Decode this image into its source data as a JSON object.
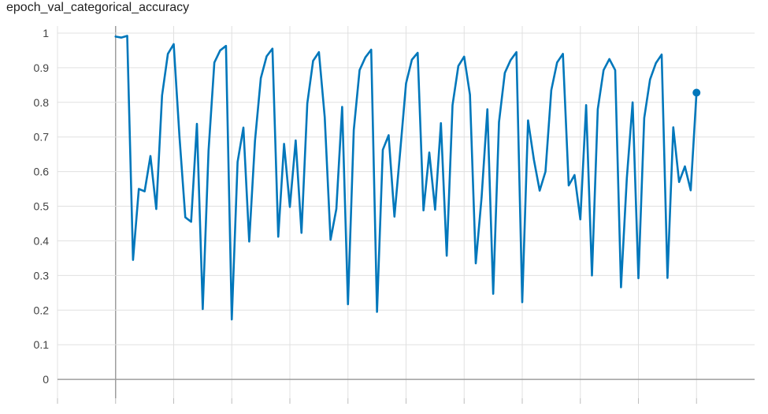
{
  "chart_data": {
    "type": "line",
    "title": "epoch_val_categorical_accuracy",
    "xlabel": "",
    "ylabel": "",
    "x_range": [
      -10,
      110
    ],
    "ylim": [
      -0.1,
      1.05
    ],
    "yticks": [
      0,
      0.1,
      0.2,
      0.3,
      0.4,
      0.5,
      0.6,
      0.7,
      0.8,
      0.9,
      1
    ],
    "ytick_labels": [
      "0",
      "0.1",
      "0.2",
      "0.3",
      "0.4",
      "0.5",
      "0.6",
      "0.7",
      "0.8",
      "0.9",
      "1"
    ],
    "xgrid": [
      -10,
      0,
      10,
      20,
      30,
      40,
      50,
      60,
      70,
      80,
      90,
      100
    ],
    "grid": true,
    "line_color": "#0077bb",
    "series": [
      {
        "name": "",
        "x": [
          0,
          1,
          2,
          3,
          4,
          5,
          6,
          7,
          8,
          9,
          10,
          11,
          12,
          13,
          14,
          15,
          16,
          17,
          18,
          19,
          20,
          21,
          22,
          23,
          24,
          25,
          26,
          27,
          28,
          29,
          30,
          31,
          32,
          33,
          34,
          35,
          36,
          37,
          38,
          39,
          40,
          41,
          42,
          43,
          44,
          45,
          46,
          47,
          48,
          49,
          50,
          51,
          52,
          53,
          54,
          55,
          56,
          57,
          58,
          59,
          60,
          61,
          62,
          63,
          64,
          65,
          66,
          67,
          68,
          69,
          70,
          71,
          72,
          73,
          74,
          75,
          76,
          77,
          78,
          79,
          80,
          81,
          82,
          83,
          84,
          85,
          86,
          87,
          88,
          89,
          90,
          91,
          92,
          93,
          94,
          95,
          96,
          97,
          98,
          99,
          100
        ],
        "values": [
          0.99,
          0.987,
          0.992,
          0.345,
          0.55,
          0.543,
          0.645,
          0.492,
          0.82,
          0.94,
          0.968,
          0.7,
          0.468,
          0.455,
          0.738,
          0.203,
          0.66,
          0.915,
          0.95,
          0.963,
          0.173,
          0.628,
          0.727,
          0.398,
          0.69,
          0.87,
          0.933,
          0.955,
          0.412,
          0.68,
          0.498,
          0.69,
          0.423,
          0.797,
          0.92,
          0.945,
          0.757,
          0.403,
          0.492,
          0.787,
          0.217,
          0.72,
          0.893,
          0.93,
          0.952,
          0.195,
          0.663,
          0.705,
          0.47,
          0.66,
          0.855,
          0.923,
          0.943,
          0.488,
          0.655,
          0.49,
          0.74,
          0.357,
          0.792,
          0.905,
          0.932,
          0.822,
          0.335,
          0.525,
          0.78,
          0.247,
          0.743,
          0.885,
          0.922,
          0.945,
          0.223,
          0.748,
          0.635,
          0.545,
          0.6,
          0.835,
          0.915,
          0.94,
          0.56,
          0.59,
          0.462,
          0.792,
          0.3,
          0.78,
          0.893,
          0.925,
          0.893,
          0.266,
          0.58,
          0.8,
          0.292,
          0.755,
          0.866,
          0.913,
          0.938,
          0.293,
          0.728,
          0.57,
          0.615,
          0.546,
          0.828
        ]
      }
    ]
  }
}
